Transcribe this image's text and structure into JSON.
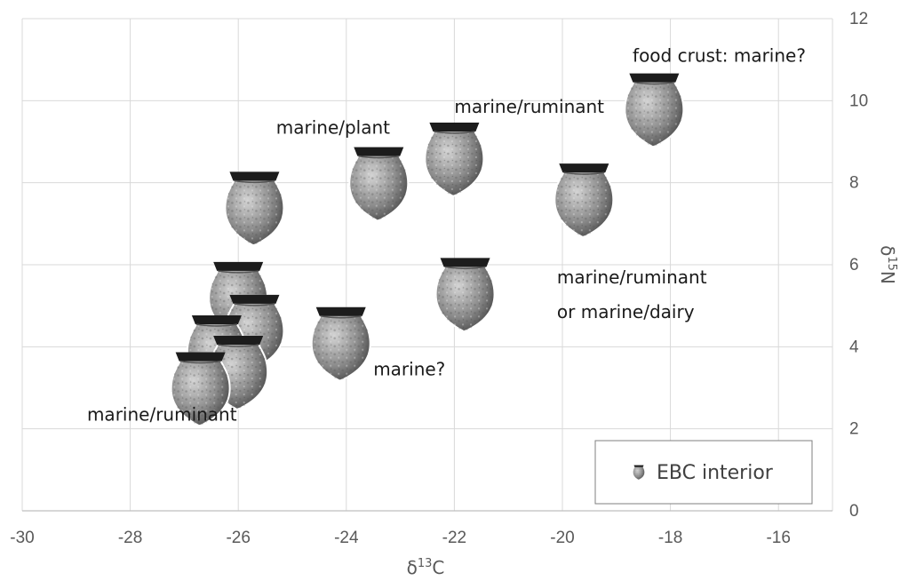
{
  "chart_data": {
    "type": "scatter",
    "title": "",
    "xlabel": {
      "prefix": "δ",
      "sup": "13",
      "suffix": "C"
    },
    "ylabel": {
      "prefix": "δ",
      "sup": "15",
      "suffix": "N"
    },
    "xlim": [
      -30,
      -15
    ],
    "ylim": [
      0,
      12
    ],
    "xticks": [
      -30,
      -28,
      -26,
      -24,
      -22,
      -20,
      -18,
      -16
    ],
    "yticks": [
      0,
      2,
      4,
      6,
      8,
      10,
      12
    ],
    "grid": true,
    "y_axis_side": "right",
    "legend": {
      "position": "bottom-right",
      "entries": [
        "EBC interior"
      ]
    },
    "series": [
      {
        "name": "EBC interior",
        "marker": "pot-icon",
        "color": "#808080",
        "points": [
          {
            "x": -25.7,
            "y": 7.4
          },
          {
            "x": -23.4,
            "y": 8.0
          },
          {
            "x": -22.0,
            "y": 8.6
          },
          {
            "x": -19.6,
            "y": 7.6
          },
          {
            "x": -18.3,
            "y": 9.8
          },
          {
            "x": -21.8,
            "y": 5.3
          },
          {
            "x": -24.1,
            "y": 4.1
          },
          {
            "x": -26.0,
            "y": 5.2
          },
          {
            "x": -25.7,
            "y": 4.4
          },
          {
            "x": -26.4,
            "y": 3.9
          },
          {
            "x": -26.0,
            "y": 3.4
          },
          {
            "x": -26.7,
            "y": 3.0
          }
        ]
      }
    ],
    "annotations": [
      {
        "text": "food crust: marine?",
        "x": -18.7,
        "y": 10.95
      },
      {
        "text": "marine/ruminant",
        "x": -22.0,
        "y": 9.7
      },
      {
        "text": "marine/plant",
        "x": -25.3,
        "y": 9.2
      },
      {
        "text": "marine/ruminant",
        "x": -20.1,
        "y": 5.55
      },
      {
        "text": "or marine/dairy",
        "x": -20.1,
        "y": 4.7
      },
      {
        "text": "marine?",
        "x": -23.5,
        "y": 3.3
      },
      {
        "text": "marine/ruminant",
        "x": -28.8,
        "y": 2.2
      }
    ]
  }
}
